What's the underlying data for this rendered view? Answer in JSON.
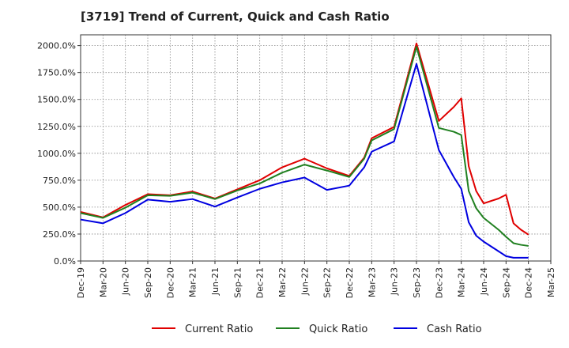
{
  "chart_data": {
    "type": "line",
    "title": "[3719]  Trend of Current, Quick and Cash Ratio",
    "xlabel": "",
    "ylabel": "",
    "ylim": [
      0,
      2100
    ],
    "y_ticks": [
      0,
      250,
      500,
      750,
      1000,
      1250,
      1500,
      1750,
      2000
    ],
    "y_tick_labels": [
      "0.0%",
      "250.0%",
      "500.0%",
      "750.0%",
      "1000.0%",
      "1250.0%",
      "1500.0%",
      "1750.0%",
      "2000.0%"
    ],
    "x_range": [
      0,
      63
    ],
    "x_tick_positions": [
      0,
      3,
      6,
      9,
      12,
      15,
      18,
      21,
      24,
      27,
      30,
      33,
      36,
      39,
      42,
      45,
      48,
      51,
      54,
      57,
      60,
      63
    ],
    "x_tick_labels": [
      "Dec-19",
      "Mar-20",
      "Jun-20",
      "Sep-20",
      "Dec-20",
      "Mar-21",
      "Jun-21",
      "Sep-21",
      "Dec-21",
      "Mar-22",
      "Jun-22",
      "Sep-22",
      "Dec-22",
      "Mar-23",
      "Jun-23",
      "Sep-23",
      "Dec-23",
      "Mar-24",
      "Jun-24",
      "Sep-24",
      "Dec-24",
      "Mar-25"
    ],
    "grid": true,
    "legend_position": "bottom",
    "series": [
      {
        "name": "Current Ratio",
        "color": "#e00000",
        "x": [
          0,
          3,
          6,
          9,
          12,
          15,
          18,
          21,
          24,
          27,
          30,
          33,
          36,
          38,
          39,
          42,
          45,
          48,
          50,
          51,
          52,
          53,
          54,
          56,
          57,
          58,
          59,
          60
        ],
        "values": [
          455,
          405,
          520,
          620,
          610,
          645,
          580,
          665,
          750,
          870,
          950,
          860,
          790,
          960,
          1140,
          1245,
          2020,
          1300,
          1430,
          1510,
          880,
          650,
          535,
          580,
          615,
          350,
          290,
          245
        ]
      },
      {
        "name": "Quick Ratio",
        "color": "#208020",
        "x": [
          0,
          3,
          6,
          9,
          12,
          15,
          18,
          21,
          24,
          27,
          30,
          33,
          36,
          38,
          39,
          42,
          45,
          48,
          50,
          51,
          52,
          53,
          54,
          56,
          57,
          58,
          59,
          60
        ],
        "values": [
          445,
          400,
          495,
          610,
          605,
          635,
          575,
          655,
          720,
          820,
          895,
          840,
          780,
          950,
          1120,
          1225,
          1990,
          1235,
          1200,
          1170,
          650,
          490,
          400,
          290,
          225,
          165,
          150,
          140
        ]
      },
      {
        "name": "Cash Ratio",
        "color": "#0000e0",
        "x": [
          0,
          3,
          6,
          9,
          12,
          15,
          18,
          21,
          24,
          27,
          30,
          33,
          36,
          38,
          39,
          42,
          45,
          48,
          50,
          51,
          52,
          53,
          54,
          56,
          57,
          58,
          59,
          60
        ],
        "values": [
          385,
          350,
          445,
          570,
          550,
          575,
          505,
          590,
          670,
          730,
          775,
          660,
          700,
          870,
          1015,
          1110,
          1830,
          1030,
          780,
          670,
          360,
          235,
          180,
          90,
          45,
          30,
          30,
          30
        ]
      }
    ]
  }
}
